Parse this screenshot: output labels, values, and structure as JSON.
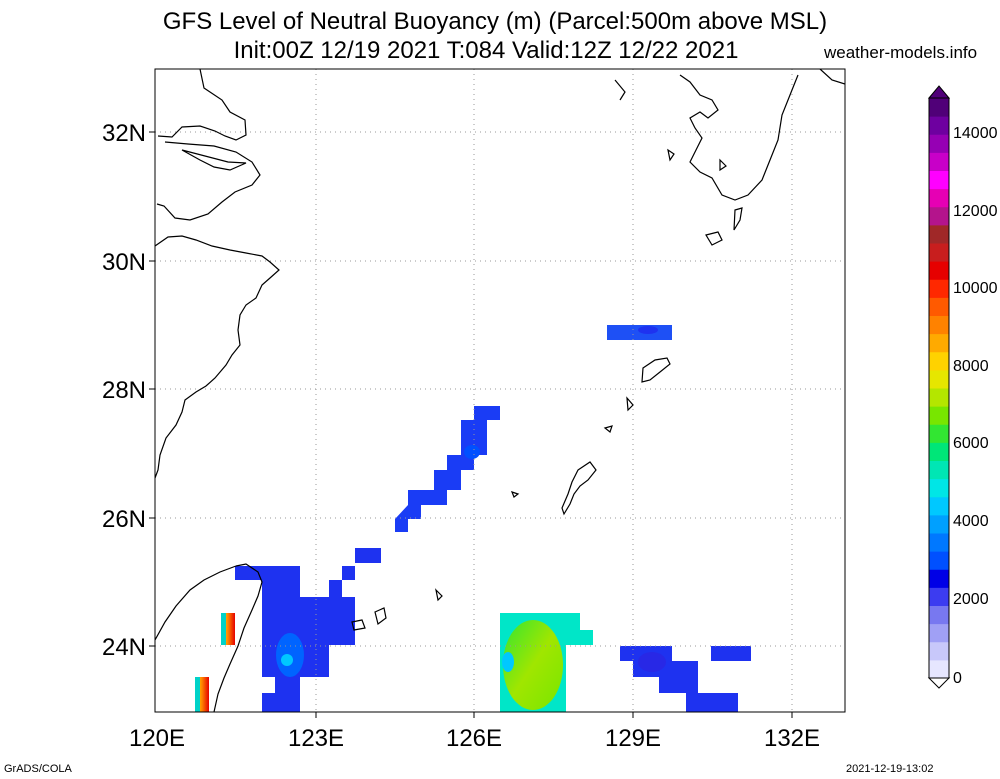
{
  "header": {
    "title_line1": "GFS Level of Neutral Buoyancy (m) (Parcel:500m above MSL)",
    "title_line2": "Init:00Z 12/19 2021 T:084 Valid:12Z 12/22 2021",
    "site": "weather-models.info"
  },
  "footer": {
    "left": "GrADS/COLA",
    "right": "2021-12-19-13:02"
  },
  "map": {
    "lon_ticks": [
      "120E",
      "123E",
      "126E",
      "129E",
      "132E"
    ],
    "lat_ticks": [
      "32N",
      "30N",
      "28N",
      "26N",
      "24N"
    ],
    "grid": true
  },
  "colorbar": {
    "labels": [
      "14000",
      "12000",
      "10000",
      "8000",
      "6000",
      "4000",
      "2000",
      "0"
    ],
    "colors": [
      "#e6e6ff",
      "#c8c8fa",
      "#a0a0f5",
      "#7878f0",
      "#3c3cf0",
      "#0000e6",
      "#0050ff",
      "#0078ff",
      "#00a0ff",
      "#00c8ff",
      "#00e6e6",
      "#00e6b4",
      "#00e678",
      "#32e632",
      "#78e600",
      "#b4e600",
      "#e6e600",
      "#ffd200",
      "#ffaa00",
      "#ff8200",
      "#ff5a00",
      "#ff2800",
      "#e60000",
      "#c81e1e",
      "#a02828",
      "#b4148c",
      "#e600b4",
      "#ff00ff",
      "#c800c8",
      "#9600b4",
      "#6e00a0",
      "#500078"
    ]
  }
}
